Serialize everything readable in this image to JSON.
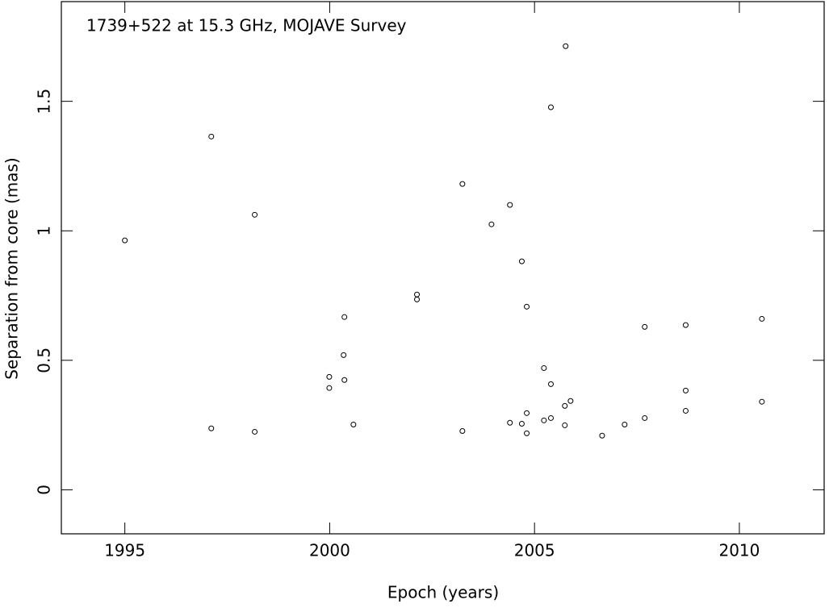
{
  "chart_data": {
    "type": "scatter",
    "title": "1739+522 at 15.3 GHz, MOJAVE Survey",
    "x_label": "Epoch (years)",
    "y_label": "Separation from core (mas)",
    "color": "#000000",
    "x": [
      1995.0,
      1997.11,
      1997.11,
      1998.17,
      1998.17,
      1999.99,
      1999.99,
      2000.36,
      2000.34,
      2000.36,
      2000.58,
      2002.13,
      2002.13,
      2003.24,
      2003.24,
      2003.95,
      2004.4,
      2004.4,
      2004.69,
      2004.69,
      2004.81,
      2004.81,
      2004.81,
      2005.23,
      2005.23,
      2005.4,
      2005.4,
      2005.4,
      2005.76,
      2005.74,
      2005.88,
      2005.74,
      2006.65,
      2007.2,
      2007.69,
      2007.69,
      2008.69,
      2008.69,
      2008.69,
      2010.55,
      2010.55
    ],
    "values": [
      0.963,
      1.364,
      0.237,
      1.062,
      0.224,
      0.436,
      0.393,
      0.667,
      0.52,
      0.424,
      0.252,
      0.754,
      0.735,
      1.181,
      0.227,
      1.025,
      1.1,
      0.259,
      0.882,
      0.255,
      0.707,
      0.296,
      0.218,
      0.47,
      0.268,
      1.477,
      0.408,
      0.277,
      1.713,
      0.324,
      0.343,
      0.249,
      0.209,
      0.252,
      0.629,
      0.277,
      0.636,
      0.383,
      0.305,
      0.66,
      0.34
    ],
    "xlim": [
      1993.45,
      2012.07
    ],
    "ylim": [
      -0.17,
      1.885
    ],
    "xticks": [
      1995,
      2000,
      2005,
      2010
    ],
    "yticks": [
      0,
      0.5,
      1,
      1.5
    ]
  }
}
